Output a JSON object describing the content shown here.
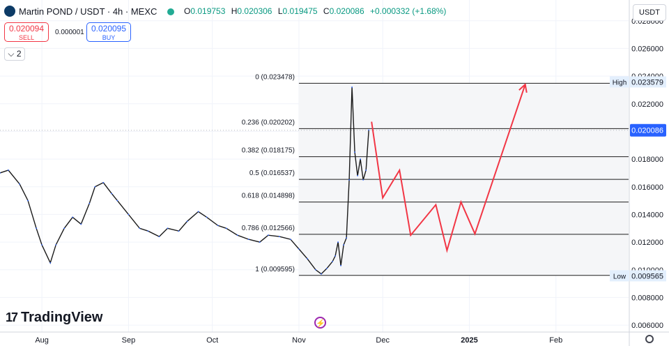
{
  "header": {
    "symbol": "Martin POND / USDT · 4h · MEXC",
    "o_label": "O",
    "o_value": "0.019753",
    "h_label": "H",
    "h_value": "0.020306",
    "l_label": "L",
    "l_value": "0.019475",
    "c_label": "C",
    "c_value": "0.020086",
    "change": "+0.000332 (+1.68%)"
  },
  "trade": {
    "sell_price": "0.020094",
    "sell_label": "SELL",
    "spread": "0.000001",
    "buy_price": "0.020095",
    "buy_label": "BUY"
  },
  "indicators_count": "2",
  "currency": "USDT",
  "brand": "TradingView",
  "colors": {
    "up": "#089981",
    "down": "#f23645",
    "accent": "#2962ff",
    "candle": "#1a1a1a",
    "projection": "#f23645",
    "price_label_bg": "#e3effd"
  },
  "chart_data": {
    "type": "line",
    "title": "Martin POND / USDT · 4h · MEXC",
    "ylim": [
      0.0055,
      0.0295
    ],
    "y_ticks": [
      "0.028000",
      "0.026000",
      "0.024000",
      "0.022000",
      "0.020000",
      "0.018000",
      "0.016000",
      "0.014000",
      "0.012000",
      "0.010000",
      "0.008000",
      "0.006000"
    ],
    "x_ticks": [
      "Aug",
      "Sep",
      "Oct",
      "Nov",
      "Dec",
      "2025",
      "Feb"
    ],
    "x_tick_dates": [
      "2024-08-01",
      "2024-09-01",
      "2024-10-01",
      "2024-11-01",
      "2024-12-01",
      "2025-01-01",
      "2025-02-01"
    ],
    "x_range": [
      "2024-07-17",
      "2025-02-27"
    ],
    "series": [
      {
        "x": [
          "2024-07-17",
          "2024-07-20",
          "2024-07-24",
          "2024-07-27",
          "2024-07-30",
          "2024-08-01",
          "2024-08-04",
          "2024-08-06",
          "2024-08-09",
          "2024-08-12",
          "2024-08-15",
          "2024-08-18",
          "2024-08-20",
          "2024-08-23",
          "2024-08-26",
          "2024-08-28",
          "2024-09-01",
          "2024-09-05",
          "2024-09-08",
          "2024-09-12",
          "2024-09-15",
          "2024-09-19",
          "2024-09-22",
          "2024-09-26",
          "2024-09-29",
          "2024-10-03",
          "2024-10-06",
          "2024-10-10",
          "2024-10-14",
          "2024-10-18",
          "2024-10-21",
          "2024-10-25",
          "2024-10-29",
          "2024-11-01",
          "2024-11-04",
          "2024-11-07",
          "2024-11-09",
          "2024-11-11",
          "2024-11-13",
          "2024-11-14",
          "2024-11-15",
          "2024-11-16",
          "2024-11-17",
          "2024-11-18",
          "2024-11-19",
          "2024-11-20",
          "2024-11-21",
          "2024-11-22",
          "2024-11-23",
          "2024-11-24",
          "2024-11-25",
          "2024-11-26"
        ],
        "values": [
          0.017,
          0.0172,
          0.0162,
          0.015,
          0.013,
          0.0118,
          0.0105,
          0.0118,
          0.013,
          0.0138,
          0.0133,
          0.0148,
          0.016,
          0.0163,
          0.0155,
          0.015,
          0.014,
          0.013,
          0.0128,
          0.0124,
          0.013,
          0.0128,
          0.0135,
          0.0142,
          0.0138,
          0.0132,
          0.013,
          0.0125,
          0.0122,
          0.012,
          0.0125,
          0.0124,
          0.0122,
          0.0115,
          0.0108,
          0.01,
          0.0097,
          0.0101,
          0.0106,
          0.011,
          0.012,
          0.0103,
          0.0118,
          0.0123,
          0.0165,
          0.0232,
          0.0185,
          0.0168,
          0.018,
          0.0165,
          0.0172,
          0.0201
        ]
      }
    ],
    "fib_levels": [
      {
        "ratio": "0",
        "price": "0.023478",
        "value": 0.023478
      },
      {
        "ratio": "0.236",
        "price": "0.020202",
        "value": 0.020202
      },
      {
        "ratio": "0.382",
        "price": "0.018175",
        "value": 0.018175
      },
      {
        "ratio": "0.5",
        "price": "0.016537",
        "value": 0.016537
      },
      {
        "ratio": "0.618",
        "price": "0.014898",
        "value": 0.014898
      },
      {
        "ratio": "0.786",
        "price": "0.012566",
        "value": 0.012566
      },
      {
        "ratio": "1",
        "price": "0.009595",
        "value": 0.009595
      }
    ],
    "fib_range": [
      "2024-11-01",
      "2025-02-27"
    ],
    "projection": {
      "x": [
        "2024-11-27",
        "2024-12-01",
        "2024-12-07",
        "2024-12-11",
        "2024-12-20",
        "2024-12-24",
        "2024-12-29",
        "2025-01-03",
        "2025-01-21"
      ],
      "values": [
        0.0207,
        0.0152,
        0.0172,
        0.0125,
        0.0147,
        0.0114,
        0.0149,
        0.0126,
        0.0234
      ]
    },
    "markers": {
      "high": {
        "label": "High",
        "value": "0.023579",
        "y": 0.023579
      },
      "low": {
        "label": "Low",
        "value": "0.009565",
        "y": 0.009565
      },
      "last": {
        "value": "0.020086",
        "y": 0.020086
      }
    }
  }
}
